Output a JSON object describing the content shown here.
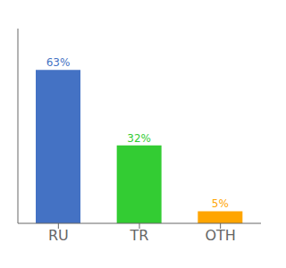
{
  "chart_data": {
    "type": "bar",
    "categories": [
      "RU",
      "TR",
      "OTH"
    ],
    "values": [
      63,
      32,
      5
    ],
    "value_labels": [
      "63%",
      "32%",
      "5%"
    ],
    "colors": [
      "#4472C4",
      "#33CC33",
      "#FFA500"
    ],
    "ylim": [
      0,
      80
    ],
    "grid": false,
    "data_labels": true,
    "tick_labels": "x"
  }
}
